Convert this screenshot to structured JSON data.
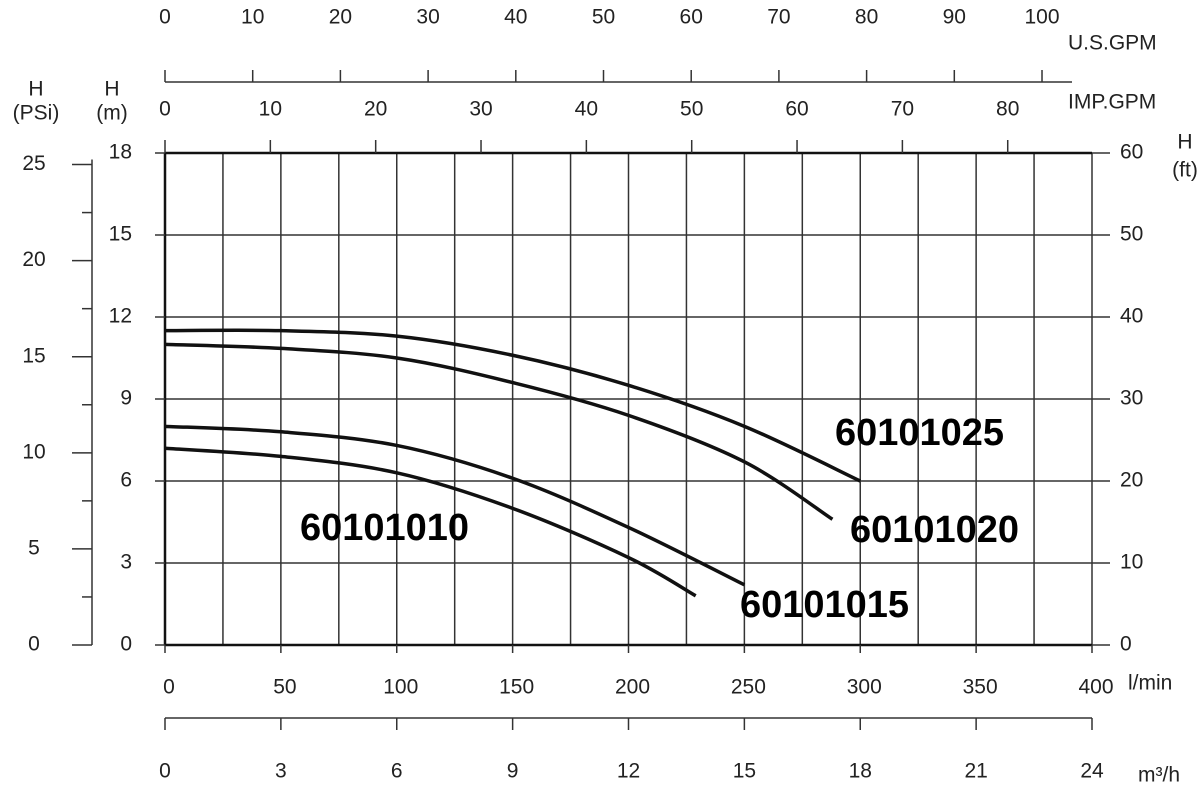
{
  "chart_data": {
    "type": "line",
    "xlabel": "l/min",
    "xlim": [
      0,
      400
    ],
    "xticks": [
      0,
      50,
      100,
      150,
      200,
      250,
      300,
      350,
      400
    ],
    "xgrid": [
      0,
      25,
      50,
      75,
      100,
      125,
      150,
      175,
      200,
      225,
      250,
      275,
      300,
      325,
      350,
      375,
      400
    ],
    "ylabel": [
      "H",
      "(m)"
    ],
    "ylim": [
      0,
      18
    ],
    "yticks": [
      0,
      3,
      6,
      9,
      12,
      15,
      18
    ],
    "grid": true,
    "color": "#111111",
    "secondary_axes": [
      {
        "side": "left",
        "label": [
          "H",
          "(PSi)"
        ],
        "lim": [
          0,
          25.6
        ],
        "ticks": [
          0,
          5,
          10,
          15,
          20,
          25
        ]
      },
      {
        "side": "right",
        "label": [
          "H",
          "(ft)"
        ],
        "lim": [
          0,
          60
        ],
        "ticks": [
          0,
          10,
          20,
          30,
          40,
          50,
          60
        ]
      },
      {
        "side": "top-outer",
        "label": [
          "U.S.GPM"
        ],
        "lim": [
          0,
          105.7
        ],
        "ticks": [
          0,
          10,
          20,
          30,
          40,
          50,
          60,
          70,
          80,
          90,
          100
        ]
      },
      {
        "side": "top-inner",
        "label": [
          "IMP.GPM"
        ],
        "lim": [
          0,
          88
        ],
        "ticks": [
          0,
          10,
          20,
          30,
          40,
          50,
          60,
          70,
          80
        ]
      },
      {
        "side": "bottom-outer",
        "label": [
          "m³/h"
        ],
        "lim": [
          0,
          24
        ],
        "ticks": [
          0,
          3,
          6,
          9,
          12,
          15,
          18,
          21,
          24
        ]
      }
    ],
    "series": [
      {
        "name": "60101025",
        "x": [
          0,
          50,
          100,
          150,
          200,
          250,
          300
        ],
        "values": [
          11.5,
          11.5,
          11.3,
          10.6,
          9.5,
          8.0,
          6.0
        ]
      },
      {
        "name": "60101020",
        "x": [
          0,
          50,
          100,
          150,
          200,
          250,
          288
        ],
        "values": [
          11.0,
          10.85,
          10.5,
          9.6,
          8.4,
          6.7,
          4.6
        ]
      },
      {
        "name": "60101015",
        "x": [
          0,
          50,
          100,
          150,
          200,
          250
        ],
        "values": [
          8.0,
          7.8,
          7.3,
          6.1,
          4.3,
          2.2
        ]
      },
      {
        "name": "60101010",
        "x": [
          0,
          50,
          100,
          150,
          200,
          229
        ],
        "values": [
          7.2,
          6.9,
          6.3,
          5.0,
          3.2,
          1.8
        ]
      }
    ]
  }
}
